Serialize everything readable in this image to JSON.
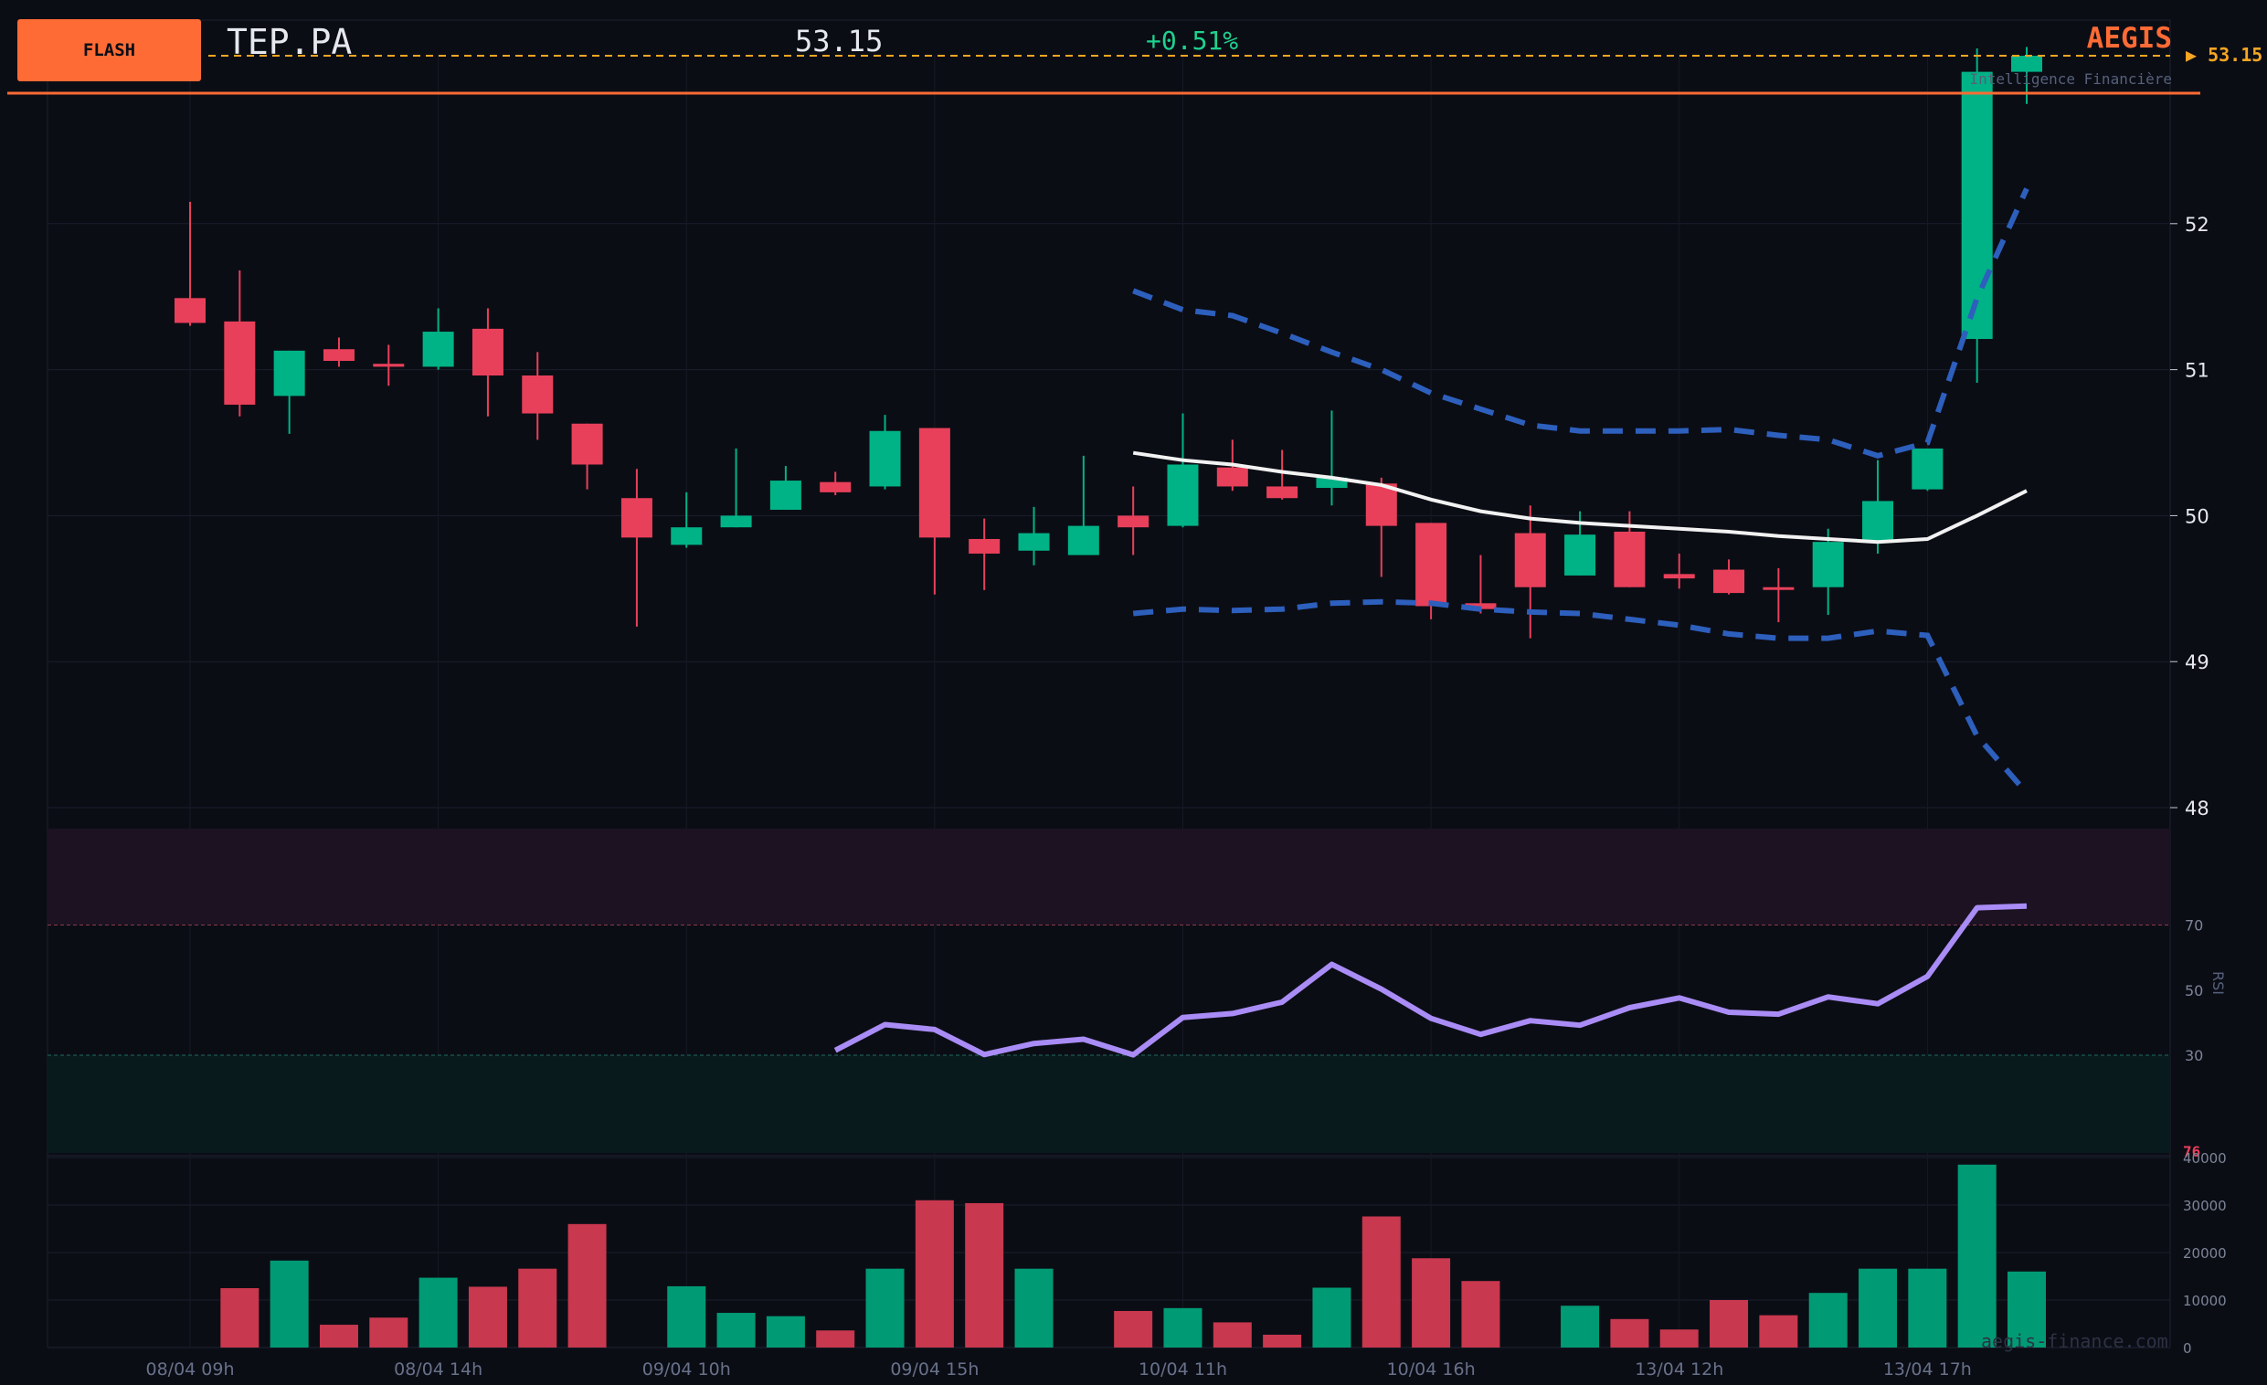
{
  "header": {
    "badge": "FLASH",
    "ticker": "TEP.PA",
    "price": "53.15",
    "change": "+0.51%",
    "brand": "AEGIS",
    "brand_subtitle": "Intelligence Financière",
    "last_price_tag": "▶ 53.15"
  },
  "watermark": "aegis-finance.com",
  "colors": {
    "background": "#0b0d15",
    "up": "#00b386",
    "down": "#e8405a",
    "accent": "#ff6b35",
    "bollinger": "#2d5fbd",
    "sma": "#f2f2f2",
    "rsi": "#a98cf5",
    "last_price": "#f5a623"
  },
  "chart_data": [
    {
      "type": "candlestick",
      "panel": "price",
      "ylim": [
        47.9,
        53.0
      ],
      "y_ticks": [
        48,
        49,
        50,
        51,
        52
      ],
      "x_tick_labels": [
        {
          "index": 0,
          "label": "08/04 09h"
        },
        {
          "index": 5,
          "label": "08/04 14h"
        },
        {
          "index": 10,
          "label": "09/04 10h"
        },
        {
          "index": 15,
          "label": "09/04 15h"
        },
        {
          "index": 20,
          "label": "10/04 11h"
        },
        {
          "index": 25,
          "label": "10/04 16h"
        },
        {
          "index": 30,
          "label": "13/04 12h"
        },
        {
          "index": 35,
          "label": "13/04 17h"
        }
      ],
      "ohlc": [
        [
          51.49,
          52.15,
          51.3,
          51.32
        ],
        [
          51.33,
          51.68,
          50.68,
          50.76
        ],
        [
          50.82,
          51.13,
          50.56,
          51.13
        ],
        [
          51.14,
          51.22,
          51.02,
          51.06
        ],
        [
          51.04,
          51.17,
          50.89,
          51.02
        ],
        [
          51.02,
          51.42,
          51.0,
          51.26
        ],
        [
          51.28,
          51.42,
          50.68,
          50.96
        ],
        [
          50.96,
          51.12,
          50.52,
          50.7
        ],
        [
          50.63,
          50.63,
          50.18,
          50.35
        ],
        [
          50.12,
          50.32,
          49.24,
          49.85
        ],
        [
          49.8,
          50.16,
          49.78,
          49.92
        ],
        [
          49.92,
          50.46,
          49.92,
          50.0
        ],
        [
          50.04,
          50.34,
          50.04,
          50.24
        ],
        [
          50.23,
          50.3,
          50.14,
          50.16
        ],
        [
          50.2,
          50.69,
          50.18,
          50.58
        ],
        [
          50.6,
          50.6,
          49.46,
          49.85
        ],
        [
          49.84,
          49.98,
          49.49,
          49.74
        ],
        [
          49.76,
          50.06,
          49.66,
          49.88
        ],
        [
          49.73,
          50.41,
          49.73,
          49.93
        ],
        [
          50.0,
          50.2,
          49.73,
          49.92
        ],
        [
          49.93,
          50.7,
          49.92,
          50.35
        ],
        [
          50.33,
          50.52,
          50.17,
          50.2
        ],
        [
          50.2,
          50.45,
          50.11,
          50.12
        ],
        [
          50.19,
          50.72,
          50.07,
          50.26
        ],
        [
          50.22,
          50.26,
          49.58,
          49.93
        ],
        [
          49.95,
          49.95,
          49.29,
          49.38
        ],
        [
          49.4,
          49.73,
          49.33,
          49.36
        ],
        [
          49.88,
          50.07,
          49.16,
          49.51
        ],
        [
          49.59,
          50.03,
          49.59,
          49.87
        ],
        [
          49.89,
          50.03,
          49.51,
          49.51
        ],
        [
          49.6,
          49.74,
          49.5,
          49.57
        ],
        [
          49.63,
          49.7,
          49.46,
          49.47
        ],
        [
          49.51,
          49.64,
          49.27,
          49.5
        ],
        [
          49.51,
          49.91,
          49.32,
          49.82
        ],
        [
          49.82,
          50.38,
          49.74,
          50.1
        ],
        [
          50.18,
          50.44,
          50.17,
          50.46
        ],
        [
          51.21,
          53.2,
          50.91,
          53.04
        ],
        [
          53.04,
          53.21,
          52.82,
          53.15
        ]
      ],
      "sma": {
        "start_index": 19,
        "values": [
          50.43,
          50.38,
          50.35,
          50.3,
          50.26,
          50.21,
          50.11,
          50.03,
          49.98,
          49.95,
          49.93,
          49.91,
          49.89,
          49.86,
          49.84,
          49.82,
          49.84,
          50.0,
          50.17
        ]
      },
      "bollinger_upper": {
        "start_index": 19,
        "values": [
          51.54,
          51.41,
          51.37,
          51.25,
          51.12,
          51.0,
          50.84,
          50.73,
          50.62,
          50.58,
          50.58,
          50.58,
          50.59,
          50.55,
          50.52,
          50.41,
          50.5,
          51.49,
          52.24
        ]
      },
      "bollinger_lower": {
        "start_index": 19,
        "values": [
          49.33,
          49.36,
          49.35,
          49.36,
          49.4,
          49.41,
          49.4,
          49.36,
          49.34,
          49.33,
          49.29,
          49.25,
          49.19,
          49.16,
          49.16,
          49.21,
          49.18,
          48.49,
          48.1
        ]
      },
      "last_price": 53.15
    },
    {
      "type": "line",
      "panel": "rsi",
      "ylabel": "RSI",
      "ylim": [
        0,
        100
      ],
      "y_ticks": [
        30,
        50,
        70
      ],
      "overbought": 70,
      "oversold": 30,
      "start_index": 13,
      "values": [
        31.5,
        39.4,
        37.9,
        30.2,
        33.6,
        34.9,
        30.1,
        41.6,
        42.8,
        46.3,
        57.9,
        50.3,
        41.3,
        36.4,
        40.6,
        39.2,
        44.6,
        47.6,
        43.2,
        42.6,
        47.9,
        45.8,
        54.2,
        75.3,
        75.8
      ],
      "value_label": "76"
    },
    {
      "type": "bar",
      "panel": "volume",
      "ylim": [
        0,
        40000
      ],
      "y_ticks": [
        0,
        10000,
        20000,
        30000,
        40000
      ],
      "values": [
        0,
        12500,
        18300,
        4800,
        6300,
        14700,
        12800,
        16600,
        26000,
        0,
        12900,
        7300,
        6600,
        3600,
        16600,
        31000,
        30400,
        16600,
        0,
        7700,
        8300,
        5300,
        2700,
        12600,
        27600,
        18800,
        14000,
        0,
        8800,
        6000,
        3800,
        10000,
        6800,
        11500,
        16600,
        16600,
        38500,
        16000
      ],
      "directions": [
        "down",
        "down",
        "up",
        "down",
        "down",
        "up",
        "down",
        "down",
        "down",
        "down",
        "up",
        "up",
        "up",
        "down",
        "up",
        "down",
        "down",
        "up",
        "up",
        "down",
        "up",
        "down",
        "down",
        "up",
        "down",
        "down",
        "down",
        "down",
        "up",
        "down",
        "down",
        "down",
        "down",
        "up",
        "up",
        "up",
        "up",
        "up"
      ]
    }
  ]
}
